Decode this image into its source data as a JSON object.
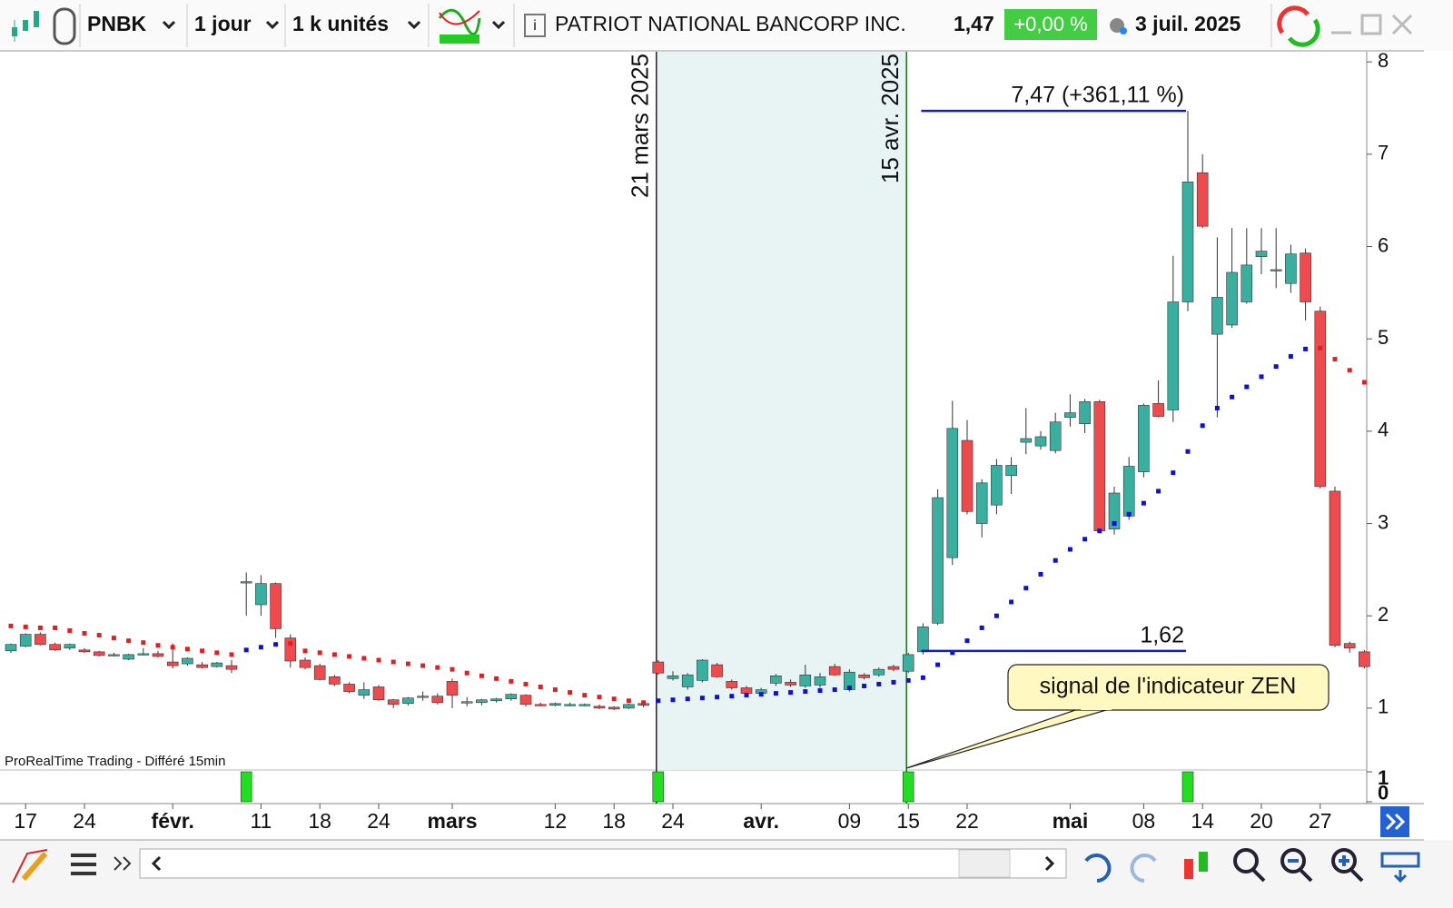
{
  "toolbar": {
    "symbol": "PNBK",
    "period": "1 jour",
    "units": "1 k unités",
    "name": "PATRIOT NATIONAL BANCORP INC.",
    "price": "1,47",
    "change": "+0,00 %",
    "date": "3 juil. 2025"
  },
  "footer_note": "ProRealTime Trading - Différé 15min",
  "chart_data": {
    "type": "candlestick",
    "color_up": "#3aaf9f",
    "color_down": "#ee4b4e",
    "sar_color_above": "#e02020",
    "sar_color_below": "#1010d0",
    "ylim": [
      0.33,
      8.11
    ],
    "yticks": [
      1,
      2,
      3,
      4,
      5,
      6,
      7,
      8
    ],
    "categories": [
      null,
      "17",
      null,
      null,
      null,
      "24",
      null,
      null,
      null,
      null,
      null,
      "févr.",
      null,
      null,
      null,
      null,
      null,
      "11",
      null,
      null,
      null,
      "18",
      null,
      null,
      null,
      "24",
      null,
      null,
      null,
      null,
      "mars",
      null,
      null,
      null,
      null,
      null,
      null,
      "12",
      null,
      null,
      null,
      "18",
      null,
      null,
      null,
      "24",
      null,
      null,
      null,
      null,
      null,
      "avr.",
      null,
      null,
      null,
      null,
      null,
      "09",
      null,
      null,
      null,
      "15",
      null,
      null,
      null,
      "22",
      null,
      null,
      null,
      null,
      null,
      null,
      "mai",
      null,
      null,
      null,
      null,
      "08",
      null,
      null,
      null,
      "14",
      null,
      null,
      null,
      "20",
      null,
      null,
      null,
      "27",
      null,
      null,
      null
    ],
    "candles": [
      [
        1.62,
        1.7,
        1.6,
        1.69
      ],
      [
        1.67,
        1.81,
        1.66,
        1.8
      ],
      [
        1.8,
        1.82,
        1.68,
        1.69
      ],
      [
        1.69,
        1.71,
        1.62,
        1.63
      ],
      [
        1.65,
        1.7,
        1.63,
        1.69
      ],
      [
        1.63,
        1.65,
        1.6,
        1.61
      ],
      [
        1.61,
        1.62,
        1.56,
        1.57
      ],
      [
        1.58,
        1.6,
        1.56,
        1.58
      ],
      [
        1.53,
        1.59,
        1.52,
        1.58
      ],
      [
        1.59,
        1.65,
        1.57,
        1.59
      ],
      [
        1.59,
        1.62,
        1.55,
        1.56
      ],
      [
        1.5,
        1.7,
        1.43,
        1.46
      ],
      [
        1.48,
        1.55,
        1.46,
        1.54
      ],
      [
        1.47,
        1.5,
        1.43,
        1.44
      ],
      [
        1.45,
        1.5,
        1.44,
        1.49
      ],
      [
        1.46,
        1.52,
        1.38,
        1.42
      ],
      [
        2.36,
        2.47,
        2.0,
        2.37
      ],
      [
        2.12,
        2.44,
        2.0,
        2.35
      ],
      [
        2.35,
        2.36,
        1.76,
        1.86
      ],
      [
        1.76,
        1.8,
        1.44,
        1.51
      ],
      [
        1.52,
        1.55,
        1.42,
        1.44
      ],
      [
        1.46,
        1.48,
        1.3,
        1.31
      ],
      [
        1.34,
        1.36,
        1.24,
        1.26
      ],
      [
        1.26,
        1.28,
        1.16,
        1.18
      ],
      [
        1.14,
        1.28,
        1.1,
        1.2
      ],
      [
        1.23,
        1.25,
        1.08,
        1.09
      ],
      [
        1.09,
        1.1,
        1.0,
        1.04
      ],
      [
        1.05,
        1.12,
        1.03,
        1.11
      ],
      [
        1.13,
        1.18,
        1.08,
        1.13
      ],
      [
        1.13,
        1.16,
        1.04,
        1.06
      ],
      [
        1.29,
        1.32,
        1.0,
        1.14
      ],
      [
        1.07,
        1.12,
        1.02,
        1.07
      ],
      [
        1.06,
        1.1,
        1.03,
        1.09
      ],
      [
        1.08,
        1.11,
        1.06,
        1.1
      ],
      [
        1.1,
        1.16,
        1.08,
        1.15
      ],
      [
        1.14,
        1.15,
        1.02,
        1.04
      ],
      [
        1.04,
        1.06,
        1.02,
        1.03
      ],
      [
        1.03,
        1.06,
        1.02,
        1.05
      ],
      [
        1.04,
        1.06,
        1.02,
        1.04
      ],
      [
        1.03,
        1.05,
        1.02,
        1.04
      ],
      [
        1.02,
        1.04,
        0.99,
        1.0
      ],
      [
        1.01,
        1.02,
        0.98,
        0.99
      ],
      [
        1.0,
        1.05,
        0.99,
        1.04
      ],
      [
        1.03,
        1.07,
        1.01,
        1.05
      ],
      [
        1.5,
        1.52,
        1.36,
        1.38
      ],
      [
        1.32,
        1.4,
        1.3,
        1.35
      ],
      [
        1.23,
        1.38,
        1.2,
        1.36
      ],
      [
        1.3,
        1.53,
        1.28,
        1.52
      ],
      [
        1.47,
        1.49,
        1.33,
        1.34
      ],
      [
        1.29,
        1.31,
        1.2,
        1.22
      ],
      [
        1.22,
        1.24,
        1.13,
        1.16
      ],
      [
        1.16,
        1.22,
        1.13,
        1.2
      ],
      [
        1.27,
        1.37,
        1.24,
        1.35
      ],
      [
        1.28,
        1.31,
        1.23,
        1.25
      ],
      [
        1.24,
        1.47,
        1.22,
        1.36
      ],
      [
        1.25,
        1.38,
        1.22,
        1.34
      ],
      [
        1.45,
        1.48,
        1.35,
        1.36
      ],
      [
        1.2,
        1.42,
        1.18,
        1.39
      ],
      [
        1.36,
        1.38,
        1.31,
        1.33
      ],
      [
        1.36,
        1.44,
        1.34,
        1.42
      ],
      [
        1.45,
        1.47,
        1.4,
        1.42
      ],
      [
        1.4,
        1.6,
        1.38,
        1.58
      ],
      [
        1.61,
        1.92,
        1.58,
        1.88
      ],
      [
        1.92,
        3.37,
        1.9,
        3.28
      ],
      [
        2.63,
        4.33,
        2.55,
        4.03
      ],
      [
        3.9,
        4.12,
        3.1,
        3.13
      ],
      [
        3.0,
        3.48,
        2.85,
        3.44
      ],
      [
        3.2,
        3.7,
        3.1,
        3.63
      ],
      [
        3.52,
        3.72,
        3.32,
        3.63
      ],
      [
        3.88,
        4.25,
        3.75,
        3.92
      ],
      [
        3.84,
        4.0,
        3.8,
        3.94
      ],
      [
        3.79,
        4.2,
        3.76,
        4.1
      ],
      [
        4.15,
        4.4,
        4.05,
        4.2
      ],
      [
        4.08,
        4.35,
        3.98,
        4.32
      ],
      [
        4.32,
        4.34,
        2.9,
        2.92
      ],
      [
        2.94,
        3.4,
        2.88,
        3.33
      ],
      [
        3.08,
        3.72,
        3.04,
        3.62
      ],
      [
        3.56,
        4.3,
        3.5,
        4.28
      ],
      [
        4.3,
        4.55,
        4.15,
        4.16
      ],
      [
        4.23,
        5.9,
        4.1,
        5.4
      ],
      [
        5.4,
        7.47,
        5.3,
        6.7
      ],
      [
        6.8,
        7.0,
        6.2,
        6.22
      ],
      [
        5.05,
        6.1,
        4.15,
        5.45
      ],
      [
        5.15,
        6.2,
        5.12,
        5.72
      ],
      [
        5.4,
        6.2,
        5.38,
        5.8
      ],
      [
        5.89,
        6.2,
        5.7,
        5.95
      ],
      [
        5.75,
        6.2,
        5.55,
        5.75
      ],
      [
        5.6,
        6.02,
        5.5,
        5.92
      ],
      [
        5.93,
        5.98,
        5.2,
        5.4
      ],
      [
        5.3,
        5.35,
        3.38,
        3.4
      ],
      [
        3.35,
        3.4,
        1.66,
        1.68
      ],
      [
        1.7,
        1.72,
        1.6,
        1.65
      ],
      [
        1.61,
        1.63,
        1.43,
        1.45
      ]
    ],
    "sar": [
      1.89,
      1.88,
      1.87,
      1.87,
      1.84,
      1.81,
      1.79,
      1.76,
      1.73,
      1.71,
      1.68,
      1.66,
      1.64,
      1.62,
      1.6,
      1.58,
      1.63,
      1.66,
      1.69,
      1.7,
      1.62,
      1.6,
      1.58,
      1.56,
      1.54,
      1.52,
      1.5,
      1.48,
      1.46,
      1.44,
      1.42,
      1.38,
      1.35,
      1.32,
      1.29,
      1.26,
      1.23,
      1.2,
      1.17,
      1.14,
      1.12,
      1.1,
      1.08,
      1.06,
      1.08,
      1.09,
      1.1,
      1.11,
      1.12,
      1.13,
      1.14,
      1.15,
      1.16,
      1.17,
      1.18,
      1.19,
      1.2,
      1.22,
      1.24,
      1.26,
      1.28,
      1.3,
      1.33,
      1.47,
      1.6,
      1.73,
      1.87,
      2.0,
      2.15,
      2.3,
      2.45,
      2.6,
      2.72,
      2.83,
      2.92,
      3.0,
      3.1,
      3.22,
      3.35,
      3.55,
      3.78,
      4.06,
      4.25,
      4.37,
      4.48,
      4.59,
      4.7,
      4.81,
      4.89,
      4.9,
      4.78,
      4.66,
      4.53
    ],
    "vlines": [
      "21 mars 2025",
      "15 avr. 2025"
    ],
    "levels": [
      {
        "value": 7.47,
        "label": "7,47 (+361,11 %)"
      },
      {
        "value": 1.62,
        "label": "1,62"
      }
    ],
    "callout": "signal de l'indicateur ZEN"
  },
  "indicator": {
    "color": "#22dd22",
    "ylim": [
      0,
      1
    ],
    "yticks": [
      1,
      0
    ],
    "values": [
      0,
      0,
      0,
      0,
      0,
      0,
      0,
      0,
      0,
      0,
      0,
      0,
      0,
      0,
      0,
      0,
      1,
      0,
      0,
      0,
      0,
      0,
      0,
      0,
      0,
      0,
      0,
      0,
      0,
      0,
      0,
      0,
      0,
      0,
      0,
      0,
      0,
      0,
      0,
      0,
      0,
      0,
      0,
      0,
      1,
      0,
      0,
      0,
      0,
      0,
      0,
      0,
      0,
      0,
      0,
      0,
      0,
      0,
      0,
      0,
      0,
      1,
      0,
      0,
      0,
      0,
      0,
      0,
      0,
      0,
      0,
      0,
      0,
      0,
      0,
      0,
      0,
      0,
      0,
      0,
      1,
      0,
      0,
      0,
      0,
      0,
      0,
      0,
      0,
      0,
      0,
      0,
      0
    ]
  }
}
